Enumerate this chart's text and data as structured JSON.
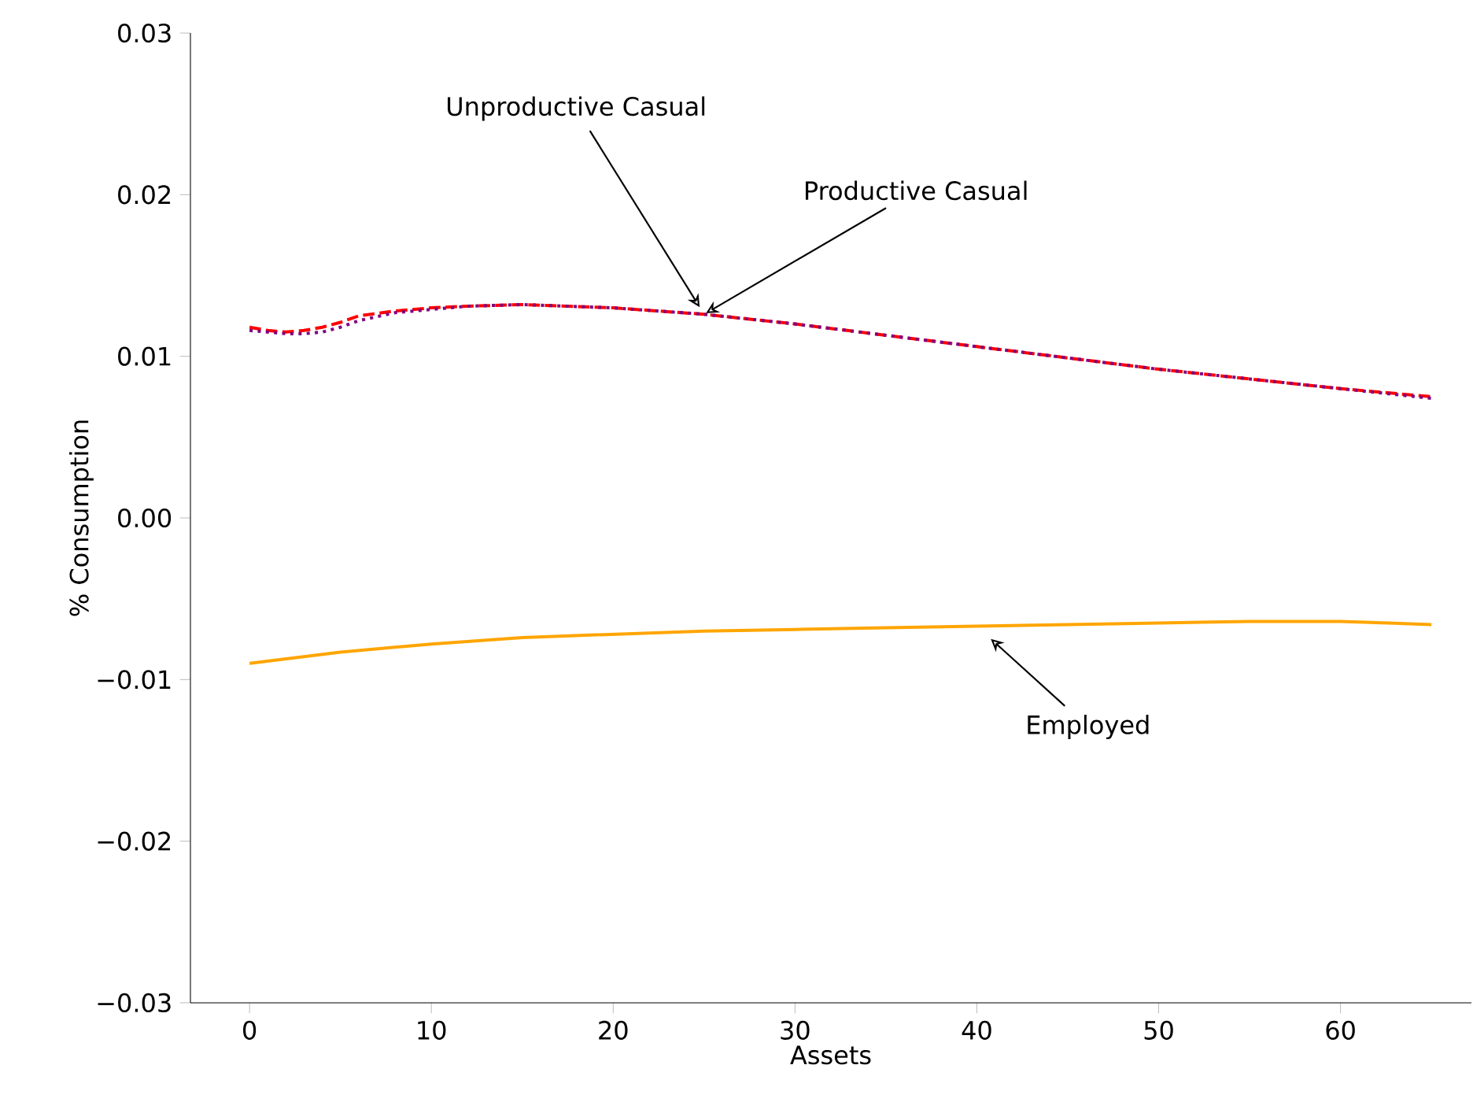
{
  "chart_data": {
    "type": "line",
    "xlabel": "Assets",
    "ylabel": "% Consumption",
    "xlim": [
      -3.25,
      67.2
    ],
    "ylim": [
      -0.03,
      0.03
    ],
    "xticks": [
      0,
      10,
      20,
      30,
      40,
      50,
      60
    ],
    "yticks": [
      {
        "value": -0.03,
        "label": "−0.03"
      },
      {
        "value": -0.02,
        "label": "−0.02"
      },
      {
        "value": -0.01,
        "label": "−0.01"
      },
      {
        "value": 0,
        "label": "0.00"
      },
      0.01,
      0.02,
      0.03
    ],
    "series": [
      {
        "name": "Productive Casual",
        "color": "#ff0000",
        "line_style": "dashed",
        "x": [
          0,
          1,
          2,
          3,
          4,
          5,
          6,
          8,
          10,
          12,
          15,
          20,
          25,
          30,
          35,
          40,
          45,
          50,
          55,
          60,
          65
        ],
        "values": [
          0.0118,
          0.0116,
          0.0115,
          0.0116,
          0.0118,
          0.0121,
          0.0125,
          0.0128,
          0.013,
          0.0131,
          0.0132,
          0.013,
          0.0126,
          0.012,
          0.0113,
          0.0106,
          0.0099,
          0.0092,
          0.0086,
          0.008,
          0.0075
        ]
      },
      {
        "name": "Unproductive Casual",
        "color": "#800080",
        "line_style": "dotted",
        "x": [
          0,
          1,
          2,
          3,
          4,
          5,
          6,
          8,
          10,
          12,
          15,
          20,
          25,
          30,
          35,
          40,
          45,
          50,
          55,
          60,
          65
        ],
        "values": [
          0.0116,
          0.0115,
          0.0114,
          0.0114,
          0.0115,
          0.0118,
          0.0122,
          0.0127,
          0.0129,
          0.0131,
          0.0132,
          0.013,
          0.0126,
          0.012,
          0.0113,
          0.0106,
          0.0099,
          0.0092,
          0.0086,
          0.008,
          0.0074
        ]
      },
      {
        "name": "Employed",
        "color": "#ffa500",
        "line_style": "solid",
        "x": [
          0,
          5,
          10,
          15,
          20,
          25,
          30,
          35,
          40,
          45,
          50,
          55,
          60,
          65
        ],
        "values": [
          -0.009,
          -0.0083,
          -0.0078,
          -0.0074,
          -0.0072,
          -0.007,
          -0.0069,
          -0.0068,
          -0.0067,
          -0.0066,
          -0.0065,
          -0.0064,
          -0.0064,
          -0.0066
        ]
      }
    ]
  }
}
